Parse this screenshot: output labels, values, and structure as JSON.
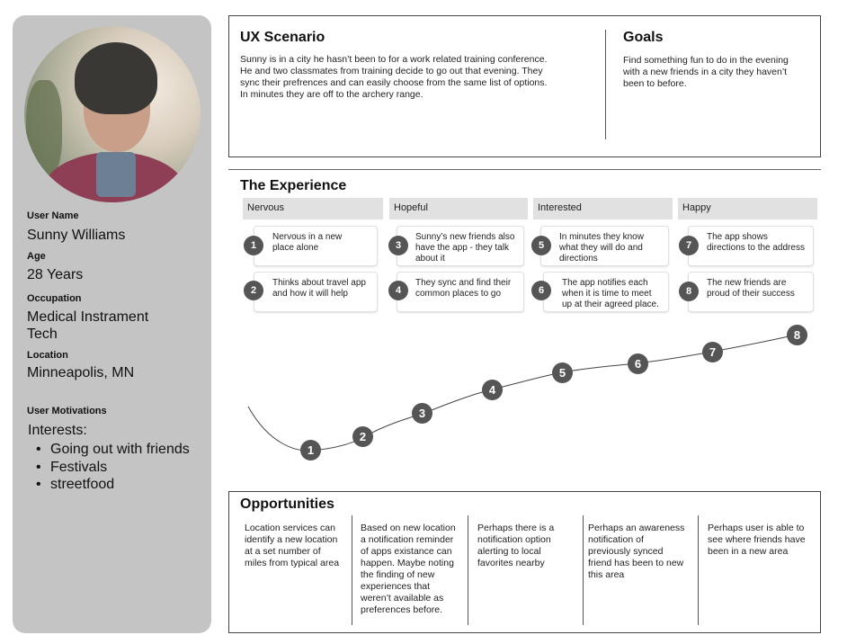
{
  "persona": {
    "user_name_label": "User Name",
    "user_name": "Sunny Williams",
    "age_label": "Age",
    "age": "28 Years",
    "occupation_label": "Occupation",
    "occupation_line1": "Medical Instrament",
    "occupation_line2": "Tech",
    "location_label": "Location",
    "location": "Minneapolis, MN",
    "motivations_label": "User Motivations",
    "interests_title": "Interests:",
    "interests": [
      "Going out with friends",
      "Festivals",
      "streetfood"
    ]
  },
  "scenario": {
    "title": "UX Scenario",
    "lines": [
      "Sunny is in a city he hasn’t been to for a work related training conference.",
      "He and two classmates from training decide to go out that evening. They",
      "sync their prefrences and can easily choose from the same list of options.",
      "In minutes they are off to the archery range."
    ]
  },
  "goals": {
    "title": "Goals",
    "lines": [
      "Find something fun to do in the evening",
      "with a new friends in a city they haven’t",
      "been to before."
    ]
  },
  "experience": {
    "title": "The Experience",
    "stages": [
      "Nervous",
      "Hopeful",
      "Interested",
      "Happy"
    ],
    "steps": [
      {
        "n": "1",
        "lines": [
          "Nervous in a new",
          "place alone"
        ]
      },
      {
        "n": "2",
        "lines": [
          "Thinks about travel app",
          "and how it will help"
        ]
      },
      {
        "n": "3",
        "lines": [
          "Sunny’s new friends also",
          "have the app - they talk",
          "about it"
        ]
      },
      {
        "n": "4",
        "lines": [
          "They sync and find their",
          "common places to go"
        ]
      },
      {
        "n": "5",
        "lines": [
          "In minutes they know",
          "what they will do and",
          "directions"
        ]
      },
      {
        "n": "6",
        "lines": [
          "The app notifies each",
          "when it is time to meet",
          "up at their agreed place."
        ]
      },
      {
        "n": "7",
        "lines": [
          "The app shows",
          "directions to the address"
        ]
      },
      {
        "n": "8",
        "lines": [
          "The new friends are",
          "proud of their success"
        ]
      }
    ],
    "curve_markers": [
      "1",
      "2",
      "3",
      "4",
      "5",
      "6",
      "7",
      "8"
    ]
  },
  "opportunities": {
    "title": "Opportunities",
    "columns": [
      [
        "Location services can",
        "identify a new location",
        "at a set number of",
        "miles from typical area"
      ],
      [
        "Based on new location",
        "a notification reminder",
        "of apps existance can",
        "happen. Maybe noting",
        "the finding of new",
        "experiences that",
        "weren’t available as",
        "preferences before."
      ],
      [
        "Perhaps there is a",
        "notification option",
        "alerting to local",
        "favorites nearby"
      ],
      [
        "Perhaps an awareness",
        "notification of",
        "previously synced",
        "friend has been to new",
        "this area"
      ],
      [
        "Perhaps user is able to",
        "see where friends have",
        "been in a new area"
      ]
    ]
  }
}
